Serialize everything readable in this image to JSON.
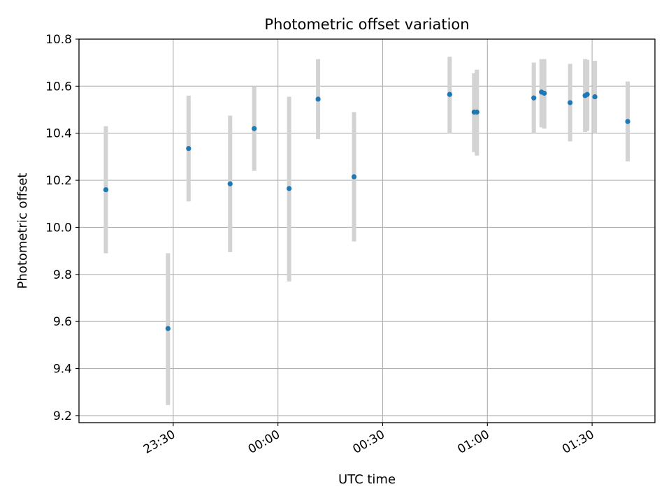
{
  "chart_data": {
    "type": "scatter",
    "title": "Photometric offset variation",
    "xlabel": "UTC time",
    "ylabel": "Photometric offset",
    "x_units": "minutes relative to 00:00 UTC",
    "xlim": [
      -57,
      108
    ],
    "ylim": [
      9.17,
      10.8
    ],
    "x_ticks": [
      {
        "value": -30,
        "label": "23:30"
      },
      {
        "value": 0,
        "label": "00:00"
      },
      {
        "value": 30,
        "label": "00:30"
      },
      {
        "value": 60,
        "label": "01:00"
      },
      {
        "value": 90,
        "label": "01:30"
      }
    ],
    "y_ticks": [
      {
        "value": 9.2,
        "label": "9.2"
      },
      {
        "value": 9.4,
        "label": "9.4"
      },
      {
        "value": 9.6,
        "label": "9.6"
      },
      {
        "value": 9.8,
        "label": "9.8"
      },
      {
        "value": 10.0,
        "label": "10.0"
      },
      {
        "value": 10.2,
        "label": "10.2"
      },
      {
        "value": 10.4,
        "label": "10.4"
      },
      {
        "value": 10.6,
        "label": "10.6"
      },
      {
        "value": 10.8,
        "label": "10.8"
      }
    ],
    "grid": true,
    "colors": {
      "point": "#1f77b4",
      "errorbar": "#d3d3d3",
      "grid": "#b0b0b0",
      "axis": "#000000"
    },
    "points": [
      {
        "x": -49.3,
        "y": 10.16,
        "err_low": 9.89,
        "err_high": 10.43
      },
      {
        "x": -31.5,
        "y": 9.57,
        "err_low": 9.245,
        "err_high": 9.89
      },
      {
        "x": -25.6,
        "y": 10.335,
        "err_low": 10.11,
        "err_high": 10.56
      },
      {
        "x": -13.7,
        "y": 10.185,
        "err_low": 9.895,
        "err_high": 10.475
      },
      {
        "x": -6.8,
        "y": 10.42,
        "err_low": 10.24,
        "err_high": 10.6
      },
      {
        "x": 3.2,
        "y": 10.165,
        "err_low": 9.77,
        "err_high": 10.555
      },
      {
        "x": 11.5,
        "y": 10.545,
        "err_low": 10.375,
        "err_high": 10.715
      },
      {
        "x": 21.8,
        "y": 10.215,
        "err_low": 9.94,
        "err_high": 10.49
      },
      {
        "x": 49.2,
        "y": 10.565,
        "err_low": 10.4,
        "err_high": 10.725
      },
      {
        "x": 56.2,
        "y": 10.49,
        "err_low": 10.32,
        "err_high": 10.655
      },
      {
        "x": 57.0,
        "y": 10.49,
        "err_low": 10.305,
        "err_high": 10.67
      },
      {
        "x": 73.3,
        "y": 10.55,
        "err_low": 10.4,
        "err_high": 10.7
      },
      {
        "x": 75.5,
        "y": 10.575,
        "err_low": 10.425,
        "err_high": 10.715
      },
      {
        "x": 76.3,
        "y": 10.57,
        "err_low": 10.42,
        "err_high": 10.715
      },
      {
        "x": 83.7,
        "y": 10.53,
        "err_low": 10.365,
        "err_high": 10.695
      },
      {
        "x": 88.0,
        "y": 10.56,
        "err_low": 10.405,
        "err_high": 10.715
      },
      {
        "x": 88.6,
        "y": 10.565,
        "err_low": 10.41,
        "err_high": 10.712
      },
      {
        "x": 90.8,
        "y": 10.555,
        "err_low": 10.4,
        "err_high": 10.708
      },
      {
        "x": 100.2,
        "y": 10.45,
        "err_low": 10.28,
        "err_high": 10.62
      }
    ]
  }
}
